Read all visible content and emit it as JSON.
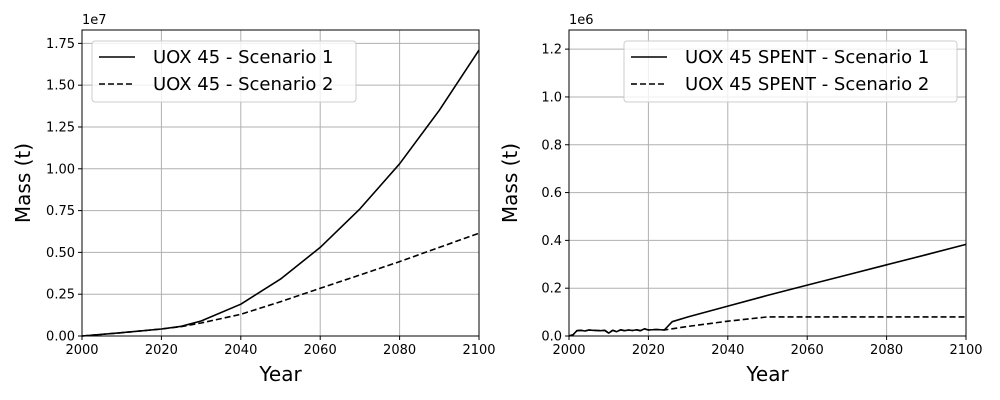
{
  "chart_data": [
    {
      "type": "line",
      "xlabel": "Year",
      "ylabel": "Mass (t)",
      "y_multiplier": "1e7",
      "xlim": [
        2000,
        2100
      ],
      "ylim": [
        0,
        18300000
      ],
      "xticks": [
        2000,
        2020,
        2040,
        2060,
        2080,
        2100
      ],
      "yticks": [
        0,
        2500000,
        5000000,
        7500000,
        10000000,
        12500000,
        15000000,
        17500000
      ],
      "ytick_labels": [
        "0.00",
        "0.25",
        "0.50",
        "0.75",
        "1.00",
        "1.25",
        "1.50",
        "1.75"
      ],
      "grid": true,
      "legend": "top-left",
      "series": [
        {
          "name": "UOX 45 - Scenario 1",
          "style": "solid",
          "x": [
            2000,
            2010,
            2020,
            2025,
            2030,
            2040,
            2050,
            2060,
            2070,
            2080,
            2090,
            2100
          ],
          "y": [
            0,
            200000,
            420000,
            580000,
            900000,
            1900000,
            3400000,
            5300000,
            7600000,
            10300000,
            13500000,
            17100000
          ]
        },
        {
          "name": "UOX 45 - Scenario 2",
          "style": "dashed",
          "x": [
            2000,
            2010,
            2020,
            2025,
            2030,
            2040,
            2050,
            2060,
            2070,
            2080,
            2090,
            2100
          ],
          "y": [
            0,
            200000,
            420000,
            560000,
            780000,
            1300000,
            2050000,
            2850000,
            3650000,
            4450000,
            5300000,
            6150000
          ]
        }
      ]
    },
    {
      "type": "line",
      "xlabel": "Year",
      "ylabel": "Mass (t)",
      "y_multiplier": "1e6",
      "xlim": [
        2000,
        2100
      ],
      "ylim": [
        0,
        1280000
      ],
      "xticks": [
        2000,
        2020,
        2040,
        2060,
        2080,
        2100
      ],
      "yticks": [
        0,
        200000,
        400000,
        600000,
        800000,
        1000000,
        1200000
      ],
      "ytick_labels": [
        "0.0",
        "0.2",
        "0.4",
        "0.6",
        "0.8",
        "1.0",
        "1.2"
      ],
      "grid": true,
      "legend": "top-right",
      "series": [
        {
          "name": "UOX 45 SPENT - Scenario 1",
          "style": "solid",
          "x": [
            2000,
            2001,
            2002,
            2003,
            2004,
            2005,
            2006,
            2007,
            2008,
            2009,
            2010,
            2011,
            2012,
            2013,
            2014,
            2015,
            2016,
            2017,
            2018,
            2019,
            2020,
            2022,
            2024,
            2026,
            2030,
            2040,
            2050,
            2060,
            2070,
            2080,
            2090,
            2100
          ],
          "y": [
            0,
            5000,
            22000,
            24000,
            21000,
            25000,
            24000,
            23000,
            22000,
            24000,
            12000,
            24000,
            18000,
            26000,
            22000,
            25000,
            23000,
            26000,
            22000,
            30000,
            25000,
            27000,
            25000,
            60000,
            80000,
            125000,
            170000,
            213000,
            255000,
            298000,
            340000,
            383000
          ]
        },
        {
          "name": "UOX 45 SPENT - Scenario 2",
          "style": "dashed",
          "x": [
            2000,
            2001,
            2002,
            2003,
            2004,
            2005,
            2006,
            2007,
            2008,
            2009,
            2010,
            2011,
            2012,
            2013,
            2014,
            2015,
            2016,
            2017,
            2018,
            2019,
            2020,
            2022,
            2024,
            2030,
            2040,
            2050,
            2060,
            2070,
            2080,
            2090,
            2100
          ],
          "y": [
            0,
            5000,
            22000,
            24000,
            21000,
            25000,
            24000,
            23000,
            22000,
            24000,
            12000,
            24000,
            18000,
            26000,
            22000,
            25000,
            23000,
            26000,
            22000,
            30000,
            25000,
            27000,
            25000,
            40000,
            62000,
            80000,
            80000,
            80000,
            80000,
            80000,
            80000
          ]
        }
      ]
    }
  ]
}
